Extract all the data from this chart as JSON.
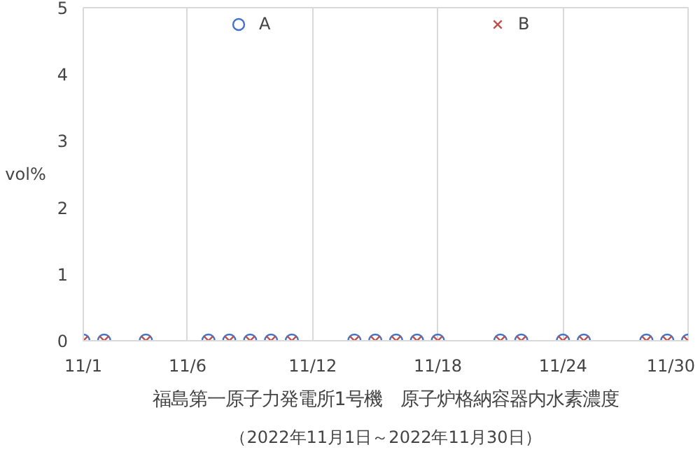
{
  "chart_data": {
    "type": "scatter",
    "title": "福島第一原子力発電所1号機　原子炉格納容器内水素濃度",
    "subtitle": "（2022年11月1日～2022年11月30日）",
    "ylabel": "vol%",
    "x": [
      "2022-11-01",
      "2022-11-02",
      "2022-11-04",
      "2022-11-07",
      "2022-11-08",
      "2022-11-09",
      "2022-11-10",
      "2022-11-11",
      "2022-11-14",
      "2022-11-15",
      "2022-11-16",
      "2022-11-17",
      "2022-11-18",
      "2022-11-21",
      "2022-11-22",
      "2022-11-24",
      "2022-11-25",
      "2022-11-28",
      "2022-11-29",
      "2022-11-30"
    ],
    "series": [
      {
        "name": "A",
        "color": "#4472c4",
        "marker": "circle",
        "values": [
          0,
          0,
          0,
          0,
          0,
          0,
          0,
          0,
          0,
          0,
          0,
          0,
          0,
          0,
          0,
          0,
          0,
          0,
          0,
          0
        ]
      },
      {
        "name": "B",
        "color": "#c0504d",
        "marker": "cross",
        "values": [
          0,
          0,
          0,
          0,
          0,
          0,
          0,
          0,
          0,
          0,
          0,
          0,
          0,
          0,
          0,
          0,
          0,
          0,
          0,
          0
        ]
      }
    ],
    "xlim": [
      "2022-11-01",
      "2022-11-30"
    ],
    "xticks": [
      {
        "value": "2022-11-01",
        "label": "11/1"
      },
      {
        "value": "2022-11-06",
        "label": "11/6"
      },
      {
        "value": "2022-11-12",
        "label": "11/12"
      },
      {
        "value": "2022-11-18",
        "label": "11/18"
      },
      {
        "value": "2022-11-24",
        "label": "11/24"
      },
      {
        "value": "2022-11-30",
        "label": "11/30"
      }
    ],
    "ylim": [
      0,
      5
    ],
    "yticks": [
      0,
      1,
      2,
      3,
      4,
      5
    ],
    "grid": "x",
    "legend": "top"
  }
}
